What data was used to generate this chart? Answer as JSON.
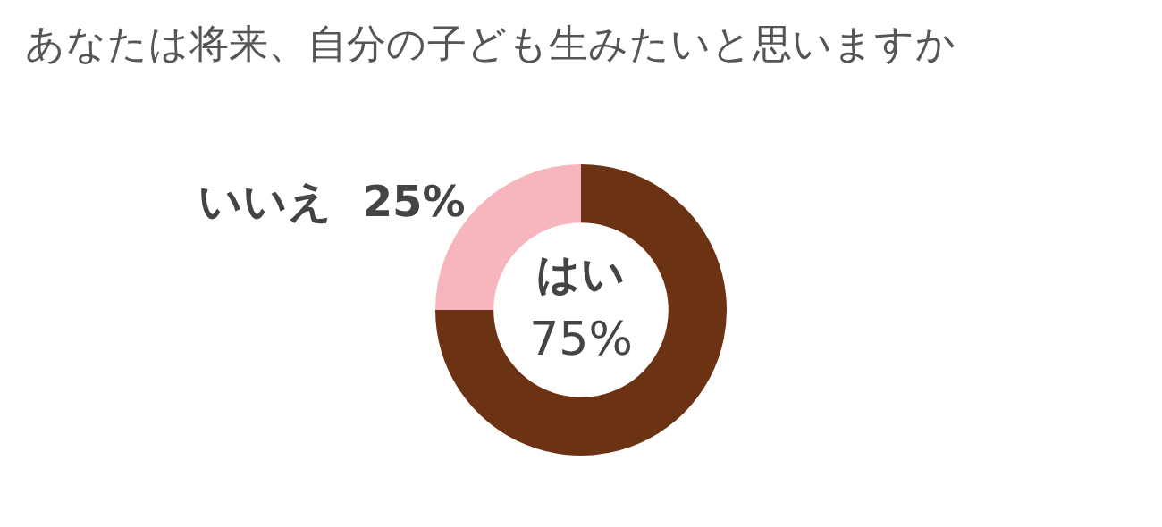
{
  "chart_data": {
    "type": "donut",
    "title": "あなたは将来、自分の子ども生みたいと思いますか",
    "categories": [
      "はい",
      "いいえ"
    ],
    "values": [
      75,
      25
    ],
    "colors": [
      "#6b3213",
      "#f7b5be"
    ],
    "value_labels": [
      "75%",
      "25%"
    ],
    "legend": false
  }
}
